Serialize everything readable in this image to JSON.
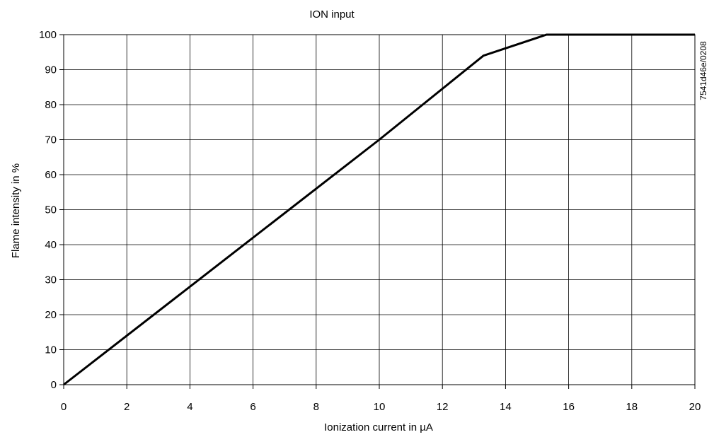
{
  "chart_data": {
    "type": "line",
    "title": "ION input",
    "xlabel": "Ionization current in µA",
    "ylabel": "Flame intensity in %",
    "xlim": [
      0,
      20
    ],
    "ylim": [
      0,
      100
    ],
    "x_ticks": [
      "0",
      "2",
      "4",
      "6",
      "8",
      "10",
      "12",
      "14",
      "16",
      "18",
      "20"
    ],
    "y_ticks": [
      "0",
      "10",
      "20",
      "30",
      "40",
      "50",
      "60",
      "70",
      "80",
      "90",
      "100"
    ],
    "grid": true,
    "series": [
      {
        "x": [
          0,
          10,
          13.3,
          15.3,
          20
        ],
        "y": [
          0,
          70,
          94,
          100,
          100
        ]
      }
    ],
    "reference_code": "7541d46e/0208",
    "line_color": "#000000"
  }
}
